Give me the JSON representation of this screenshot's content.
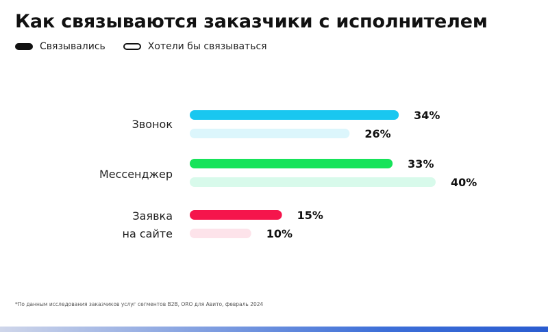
{
  "chart_data": {
    "type": "bar",
    "orientation": "horizontal",
    "title": "Как связываются заказчики с исполнителем",
    "categories": [
      "Звонок",
      "Мессенджер",
      "Заявка на сайте"
    ],
    "category_lines": [
      [
        "Звонок"
      ],
      [
        "Мессенджер"
      ],
      [
        "Заявка",
        "на сайте"
      ]
    ],
    "series": [
      {
        "name": "Связывались",
        "values": [
          34,
          33,
          15
        ]
      },
      {
        "name": "Хотели бы связываться",
        "values": [
          26,
          40,
          10
        ]
      }
    ],
    "value_labels": [
      [
        "34%",
        "26%"
      ],
      [
        "33%",
        "40%"
      ],
      [
        "15%",
        "10%"
      ]
    ],
    "xlim": [
      0,
      40
    ],
    "grid": false,
    "legend_position": "top-left",
    "colors": {
      "primary": [
        "#19c7f0",
        "#17e35a",
        "#f5154c"
      ],
      "secondary": [
        "#dcf6fc",
        "#d8faeb",
        "#fde3ea"
      ]
    }
  },
  "legend": {
    "contacted": "Связывались",
    "want": "Хотели бы связываться"
  },
  "footnote": "*По данным исследования заказчиков услуг сегментов B2B, ORO для Авито, февраль 2024"
}
